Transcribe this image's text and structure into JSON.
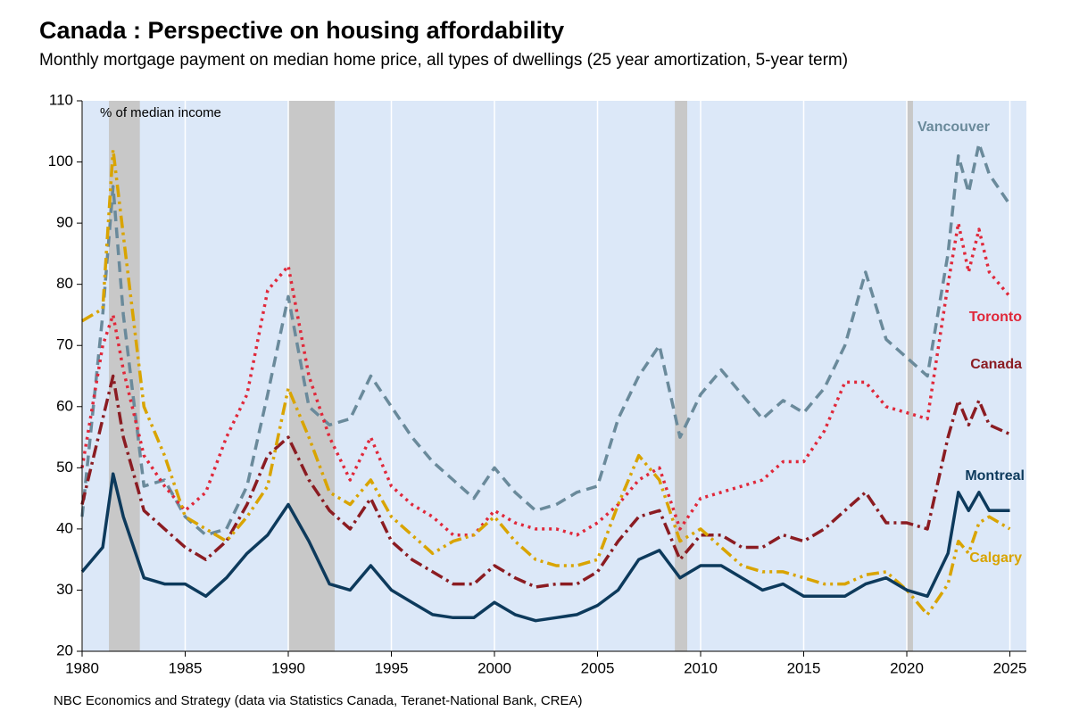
{
  "chart_data": {
    "type": "line",
    "title": "Canada : Perspective on housing affordability",
    "subtitle": "Monthly mortgage payment on median home price, all types of dwellings (25 year amortization, 5-year term)",
    "y_label": "% of median income",
    "source": "NBC Economics and Strategy (data via Statistics Canada, Teranet-National Bank, CREA)",
    "x": [
      1980,
      1981,
      1981.5,
      1982,
      1983,
      1984,
      1985,
      1986,
      1987,
      1988,
      1989,
      1990,
      1991,
      1992,
      1993,
      1994,
      1995,
      1996,
      1997,
      1998,
      1999,
      2000,
      2001,
      2002,
      2003,
      2004,
      2005,
      2006,
      2007,
      2008,
      2009,
      2010,
      2011,
      2012,
      2013,
      2014,
      2015,
      2016,
      2017,
      2018,
      2019,
      2020,
      2021,
      2022,
      2022.5,
      2023,
      2023.5,
      2024,
      2025
    ],
    "series": [
      {
        "name": "Vancouver",
        "color": "#6a8a9b",
        "dash": "12 7",
        "values": [
          42,
          75,
          96,
          75,
          47,
          48,
          42,
          39,
          40,
          47,
          62,
          78,
          60,
          57,
          58,
          65,
          60,
          55,
          51,
          48,
          45,
          50,
          46,
          43,
          44,
          46,
          47,
          58,
          65,
          70,
          55,
          62,
          66,
          62,
          58,
          61,
          59,
          63,
          70,
          82,
          71,
          68,
          65,
          85,
          101,
          95,
          103,
          98,
          93
        ]
      },
      {
        "name": "Toronto",
        "color": "#e0283a",
        "dash": "3 5",
        "values": [
          50,
          70,
          75,
          66,
          52,
          47,
          43,
          46,
          55,
          62,
          79,
          83,
          65,
          55,
          48,
          55,
          47,
          44,
          42,
          39,
          39,
          43,
          41,
          40,
          40,
          39,
          41,
          44,
          48,
          50,
          40,
          45,
          46,
          47,
          48,
          51,
          51,
          56,
          64,
          64,
          60,
          59,
          58,
          80,
          90,
          82,
          89,
          82,
          78
        ]
      },
      {
        "name": "Canada",
        "color": "#8b1c22",
        "dash": "14 5 3 5",
        "values": [
          44,
          58,
          65,
          55,
          43,
          40,
          37,
          35,
          38,
          44,
          52,
          55,
          48,
          43,
          40,
          45,
          38,
          35,
          33,
          31,
          31,
          34,
          32,
          30.5,
          31,
          31,
          33,
          38,
          42,
          43,
          35,
          39,
          39,
          37,
          37,
          39,
          38,
          40,
          43,
          46,
          41,
          41,
          40,
          55,
          61,
          57,
          61,
          57,
          55.5
        ]
      },
      {
        "name": "Montreal",
        "color": "#0d3a5c",
        "dash": "",
        "values": [
          33,
          37,
          49,
          42,
          32,
          31,
          31,
          29,
          32,
          36,
          39,
          44,
          38,
          31,
          30,
          34,
          30,
          28,
          26,
          25.5,
          25.5,
          28,
          26,
          25,
          25.5,
          26,
          27.5,
          30,
          35,
          36.5,
          32,
          34,
          34,
          32,
          30,
          31,
          29,
          29,
          29,
          31,
          32,
          30,
          29,
          36,
          46,
          43,
          46,
          43,
          43
        ]
      },
      {
        "name": "Calgary",
        "color": "#d9a400",
        "dash": "14 5 3 5 3 5",
        "values": [
          74,
          76,
          102,
          88,
          60,
          52,
          42,
          40,
          38,
          42,
          47,
          63,
          55,
          46,
          44,
          48,
          42,
          39,
          36,
          38,
          39,
          42,
          38,
          35,
          34,
          34,
          35,
          44,
          52,
          48,
          38,
          40,
          37,
          34,
          33,
          33,
          32,
          31,
          31,
          32.5,
          33,
          30,
          26,
          31,
          38,
          36,
          41,
          42,
          40
        ]
      }
    ],
    "recessions": [
      [
        1981.3,
        1982.8
      ],
      [
        1990,
        1992.25
      ],
      [
        2008.75,
        2009.35
      ],
      [
        2020,
        2020.3
      ]
    ],
    "xlim": [
      1980,
      2025.8
    ],
    "ylim": [
      20,
      110
    ],
    "xticks": [
      1980,
      1985,
      1990,
      1995,
      2000,
      2005,
      2010,
      2015,
      2020,
      2025
    ],
    "yticks": [
      20,
      30,
      40,
      50,
      60,
      70,
      80,
      90,
      100,
      110
    ],
    "grid": true
  }
}
